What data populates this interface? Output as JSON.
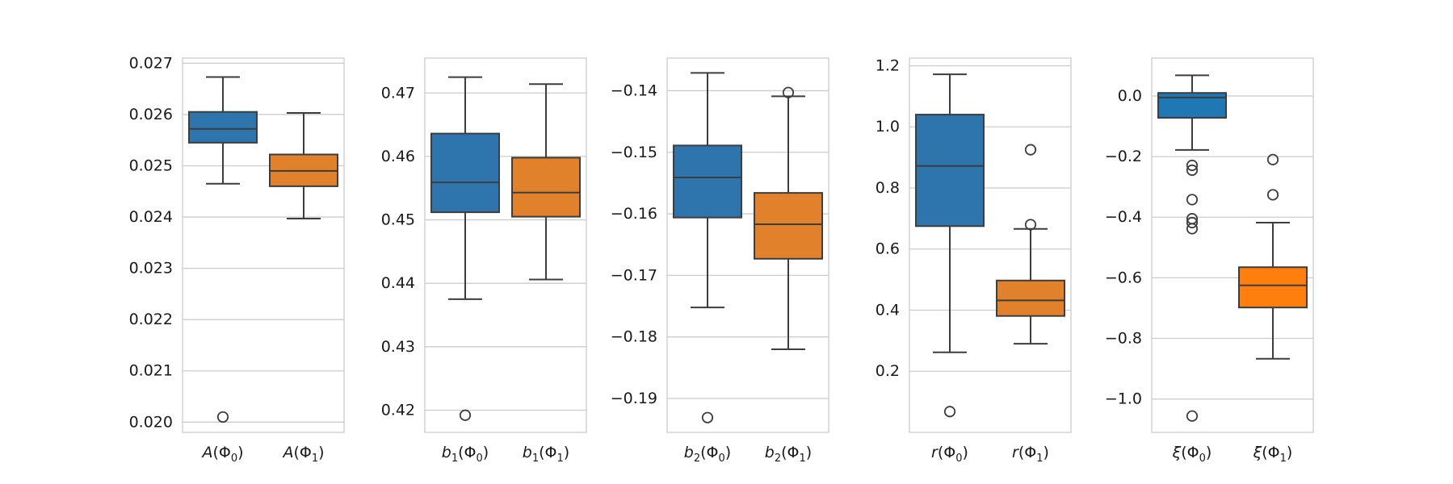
{
  "chart_data": [
    {
      "type": "box",
      "ylim": [
        0.0198,
        0.0271
      ],
      "ticks": [
        0.02,
        0.021,
        0.022,
        0.023,
        0.024,
        0.025,
        0.026,
        0.027
      ],
      "tick_labels": [
        "0.020",
        "0.021",
        "0.022",
        "0.023",
        "0.024",
        "0.025",
        "0.026",
        "0.027"
      ],
      "categories": [
        {
          "label": "A(Φ0)",
          "var": "A",
          "sub": "0",
          "color": "#2e75ad",
          "q1": 0.02545,
          "median": 0.02572,
          "q3": 0.02605,
          "whislo": 0.02465,
          "whishi": 0.02673,
          "fliers": [
            0.0201
          ]
        },
        {
          "label": "A(Φ1)",
          "var": "A",
          "sub": "1",
          "color": "#e1812c",
          "q1": 0.0246,
          "median": 0.0249,
          "q3": 0.02522,
          "whislo": 0.02397,
          "whishi": 0.02603,
          "fliers": []
        }
      ]
    },
    {
      "type": "box",
      "ylim": [
        0.4165,
        0.4755
      ],
      "ticks": [
        0.42,
        0.43,
        0.44,
        0.45,
        0.46,
        0.47
      ],
      "tick_labels": [
        "0.42",
        "0.43",
        "0.44",
        "0.45",
        "0.46",
        "0.47"
      ],
      "categories": [
        {
          "label": "b1(Φ0)",
          "var": "b",
          "varsub": "1",
          "sub": "0",
          "color": "#2e75ad",
          "q1": 0.4512,
          "median": 0.4559,
          "q3": 0.4636,
          "whislo": 0.4375,
          "whishi": 0.4725,
          "fliers": [
            0.4192
          ]
        },
        {
          "label": "b1(Φ1)",
          "var": "b",
          "varsub": "1",
          "sub": "1",
          "color": "#e1812c",
          "q1": 0.4505,
          "median": 0.4543,
          "q3": 0.4598,
          "whislo": 0.4406,
          "whishi": 0.4714,
          "fliers": []
        }
      ]
    },
    {
      "type": "box",
      "ylim": [
        -0.1955,
        -0.1347
      ],
      "ticks": [
        -0.19,
        -0.18,
        -0.17,
        -0.16,
        -0.15,
        -0.14
      ],
      "tick_labels": [
        "−0.19",
        "−0.18",
        "−0.17",
        "−0.16",
        "−0.15",
        "−0.14"
      ],
      "categories": [
        {
          "label": "b2(Φ0)",
          "var": "b",
          "varsub": "2",
          "sub": "0",
          "color": "#2e75ad",
          "q1": -0.1606,
          "median": -0.1541,
          "q3": -0.1489,
          "whislo": -0.1752,
          "whishi": -0.1371,
          "fliers": [
            -0.1931
          ]
        },
        {
          "label": "b2(Φ1)",
          "var": "b",
          "varsub": "2",
          "sub": "1",
          "color": "#e1812c",
          "q1": -0.1673,
          "median": -0.1617,
          "q3": -0.1566,
          "whislo": -0.182,
          "whishi": -0.1409,
          "fliers": [
            -0.1403
          ]
        }
      ]
    },
    {
      "type": "box",
      "ylim": [
        0.0,
        1.225
      ],
      "ticks": [
        0.2,
        0.4,
        0.6,
        0.8,
        1.0,
        1.2
      ],
      "tick_labels": [
        "0.2",
        "0.4",
        "0.6",
        "0.8",
        "1.0",
        "1.2"
      ],
      "categories": [
        {
          "label": "r(Φ0)",
          "var": "r",
          "sub": "0",
          "color": "#2e75ad",
          "q1": 0.675,
          "median": 0.872,
          "q3": 1.04,
          "whislo": 0.262,
          "whishi": 1.172,
          "fliers": [
            0.068
          ]
        },
        {
          "label": "r(Φ1)",
          "var": "r",
          "sub": "1",
          "color": "#e1812c",
          "q1": 0.381,
          "median": 0.432,
          "q3": 0.497,
          "whislo": 0.29,
          "whishi": 0.666,
          "fliers": [
            0.68,
            0.925
          ]
        }
      ]
    },
    {
      "type": "box",
      "ylim": [
        -1.11,
        0.125
      ],
      "ticks": [
        -1.0,
        -0.8,
        -0.6,
        -0.4,
        -0.2,
        0.0
      ],
      "tick_labels": [
        "−1.0",
        "−0.8",
        "−0.6",
        "−0.4",
        "−0.2",
        "0.0"
      ],
      "categories": [
        {
          "label": "ξ(Φ0)",
          "var": "ξ",
          "sub": "0",
          "color": "#1f77b4",
          "q1": -0.072,
          "median": -0.005,
          "q3": 0.01,
          "whislo": -0.178,
          "whishi": 0.068,
          "fliers": [
            -0.229,
            -0.245,
            -0.342,
            -0.405,
            -0.418,
            -0.438,
            -1.056
          ]
        },
        {
          "label": "ξ(Φ1)",
          "var": "ξ",
          "sub": "1",
          "color": "#ff7f0e",
          "q1": -0.698,
          "median": -0.625,
          "q3": -0.565,
          "whislo": -0.867,
          "whishi": -0.418,
          "fliers": [
            -0.21,
            -0.326
          ]
        }
      ]
    }
  ]
}
